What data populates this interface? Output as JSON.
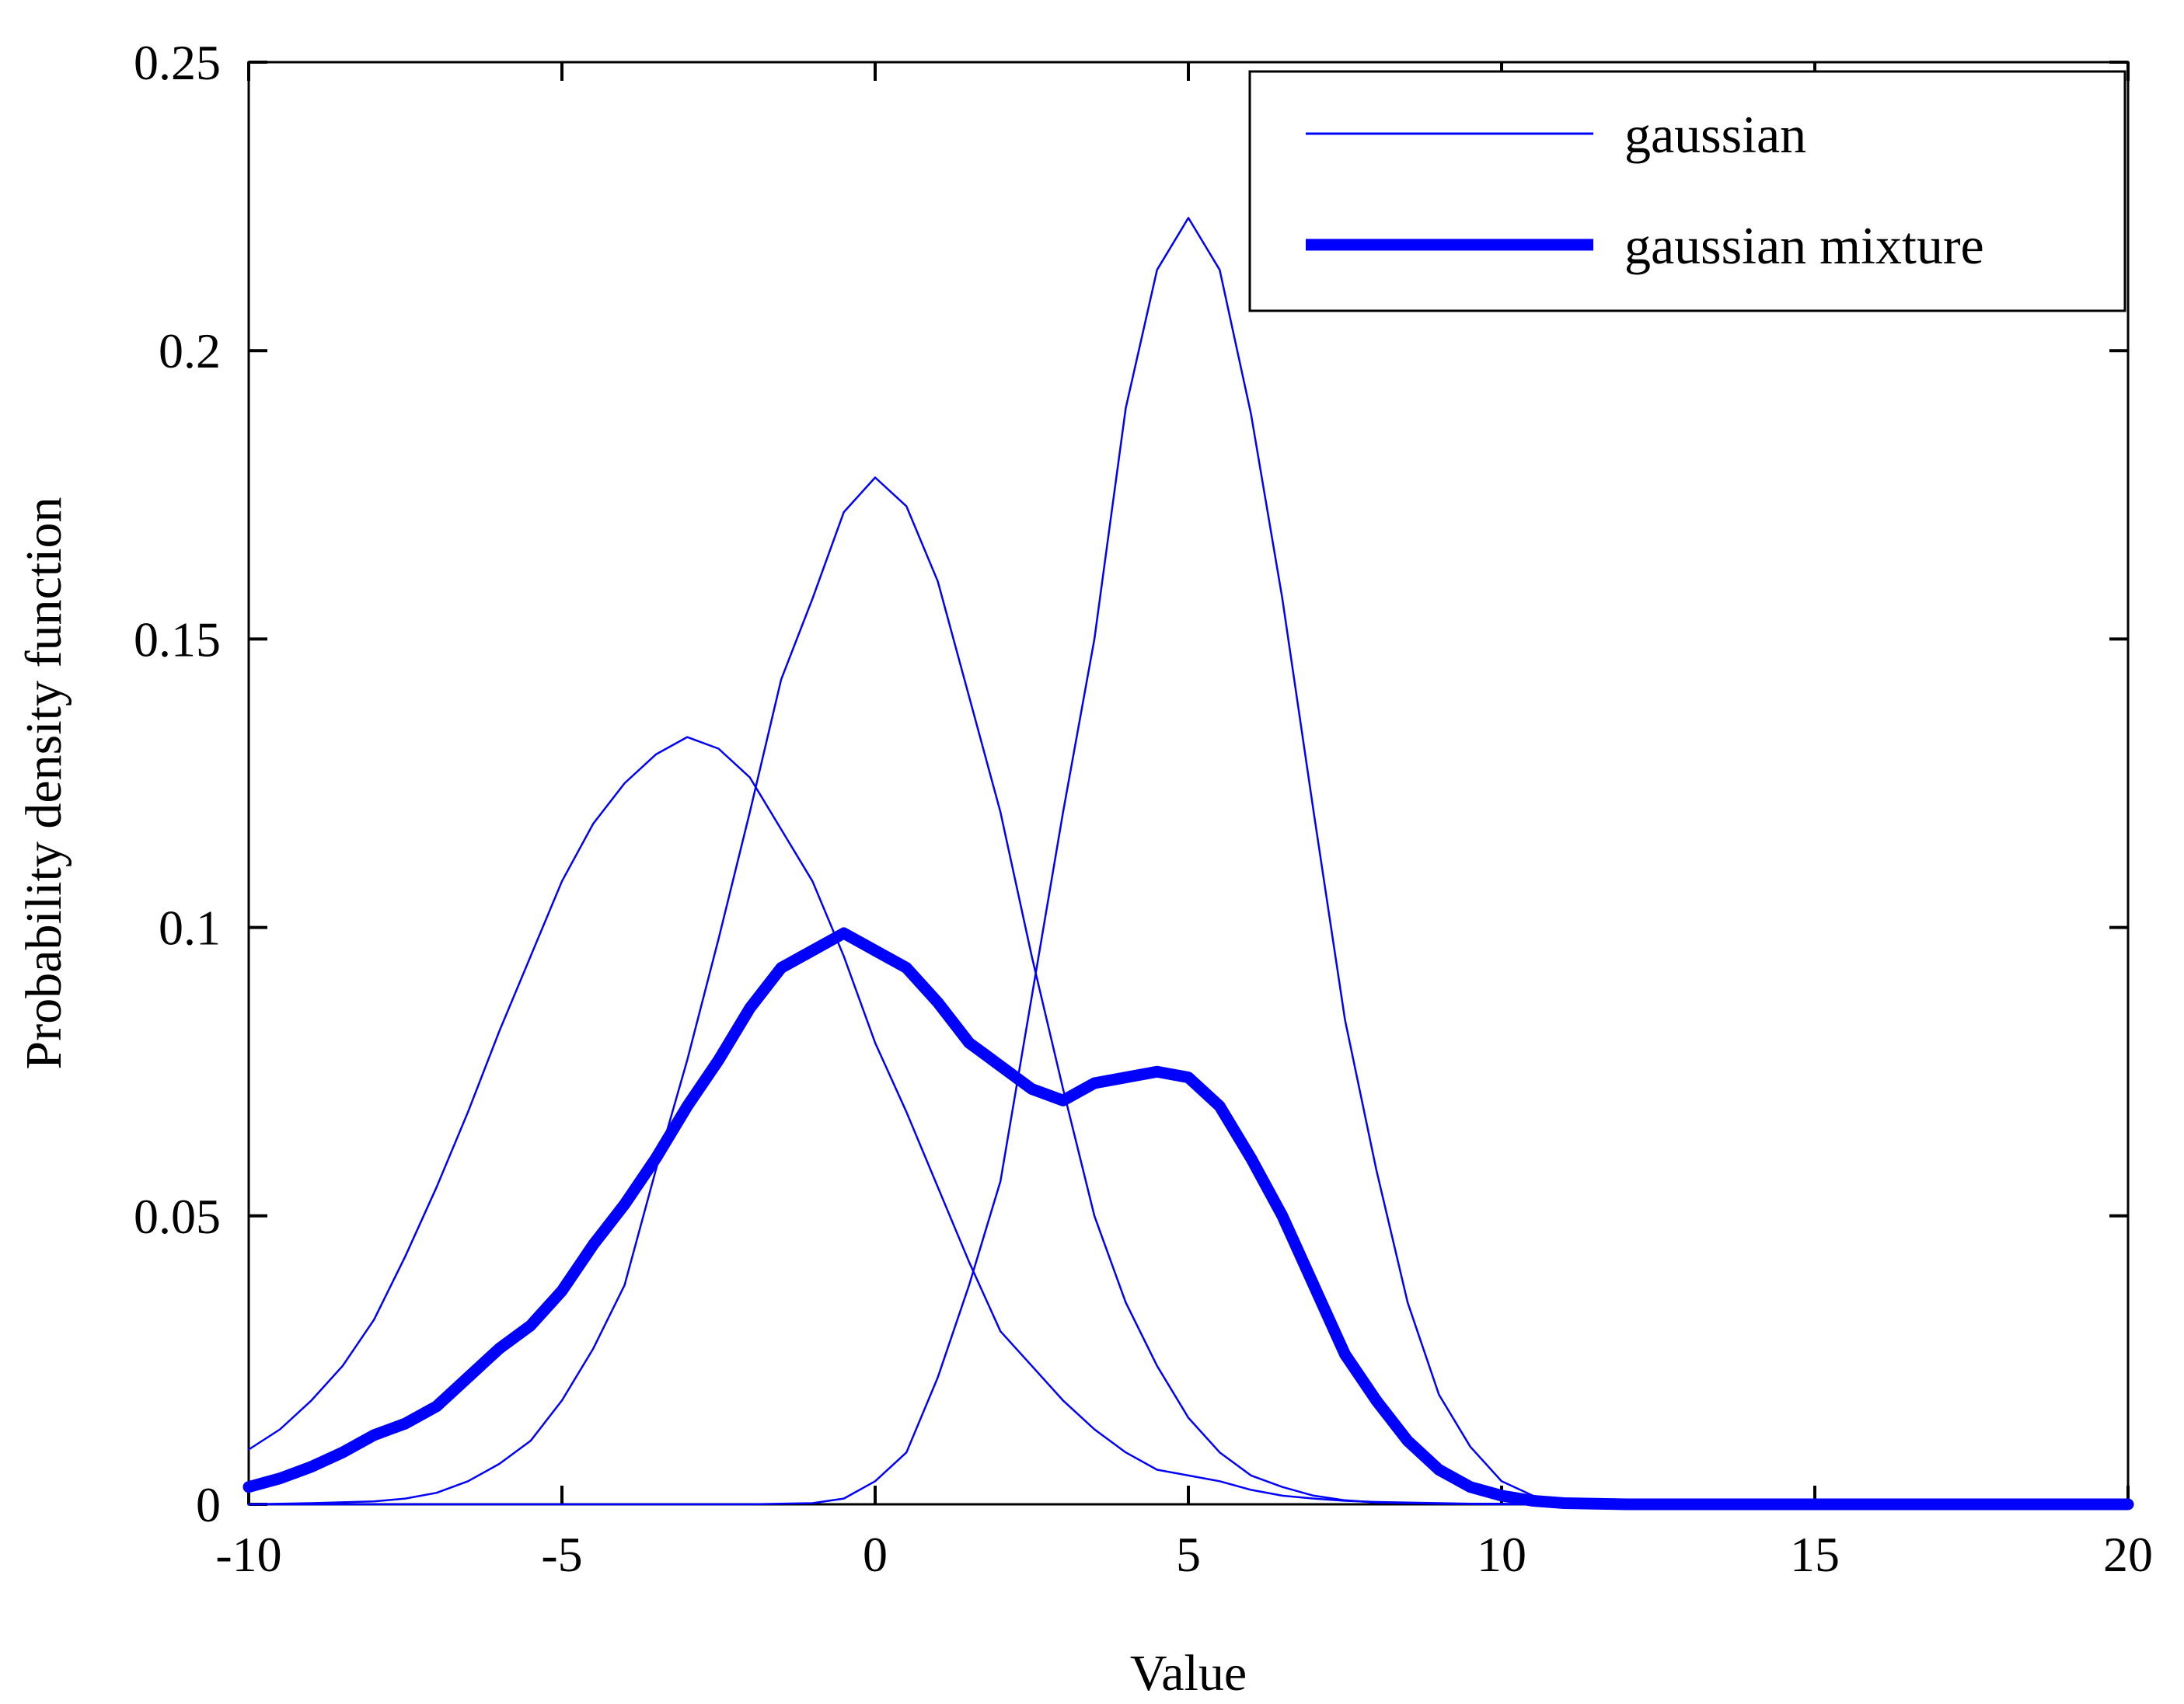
{
  "chart_data": {
    "type": "line",
    "xlabel": "Value",
    "ylabel": "Probability density function",
    "xlim": [
      -10,
      20
    ],
    "ylim": [
      0,
      0.25
    ],
    "xticks": [
      -10,
      -5,
      0,
      5,
      10,
      15,
      20
    ],
    "xtick_labels": [
      "-10",
      "-5",
      "0",
      "5",
      "10",
      "15",
      "20"
    ],
    "yticks": [
      0,
      0.05,
      0.1,
      0.15,
      0.2,
      0.25
    ],
    "ytick_labels": [
      "0",
      "0.05",
      "0.1",
      "0.15",
      "0.2",
      "0.25"
    ],
    "grid": false,
    "legend": {
      "placement": "top-right",
      "entries": [
        {
          "label": "gaussian",
          "style": "thin"
        },
        {
          "label": "gaussian mixture",
          "style": "thick"
        }
      ]
    },
    "colors": {
      "line": "#0000ff",
      "axis": "#000000"
    },
    "series": [
      {
        "legend": "gaussian",
        "style": "thin",
        "x": [
          -10,
          -9.5,
          -9,
          -8.5,
          -8,
          -7.5,
          -7,
          -6.5,
          -6,
          -5.5,
          -5,
          -4.5,
          -4,
          -3.5,
          -3,
          -2.5,
          -2,
          -1.5,
          -1,
          -0.5,
          0,
          0.5,
          1,
          1.5,
          2,
          2.5,
          3,
          3.5,
          4,
          4.5,
          5,
          5.5,
          6,
          6.5,
          7,
          7.5,
          8,
          8.5,
          9,
          9.5,
          10,
          10.5,
          11,
          12,
          14,
          16,
          18,
          20
        ],
        "y": [
          0.0095,
          0.013,
          0.018,
          0.024,
          0.032,
          0.043,
          0.055,
          0.068,
          0.082,
          0.095,
          0.108,
          0.118,
          0.125,
          0.13,
          0.133,
          0.131,
          0.126,
          0.117,
          0.108,
          0.095,
          0.08,
          0.068,
          0.055,
          0.042,
          0.03,
          0.024,
          0.018,
          0.013,
          0.009,
          0.006,
          0.005,
          0.004,
          0.0025,
          0.0015,
          0.001,
          0.0006,
          0.0004,
          0.0003,
          0.0002,
          0.0001,
          0.0001,
          0,
          0,
          0,
          0,
          0,
          0,
          0
        ]
      },
      {
        "legend": "gaussian",
        "style": "thin",
        "x": [
          -10,
          -9,
          -8,
          -7.5,
          -7,
          -6.5,
          -6,
          -5.5,
          -5,
          -4.5,
          -4,
          -3.5,
          -3,
          -2.5,
          -2,
          -1.5,
          -1,
          -0.5,
          0,
          0.5,
          1,
          1.5,
          2,
          2.5,
          3,
          3.5,
          4,
          4.5,
          5,
          5.5,
          6,
          6.5,
          7,
          7.5,
          8,
          9,
          10,
          12,
          14,
          16,
          18,
          20
        ],
        "y": [
          0,
          0.0002,
          0.0005,
          0.001,
          0.002,
          0.004,
          0.007,
          0.011,
          0.018,
          0.027,
          0.038,
          0.058,
          0.077,
          0.098,
          0.12,
          0.143,
          0.157,
          0.172,
          0.178,
          0.173,
          0.16,
          0.14,
          0.12,
          0.095,
          0.072,
          0.05,
          0.035,
          0.024,
          0.015,
          0.009,
          0.005,
          0.003,
          0.0015,
          0.0007,
          0.0003,
          0.0001,
          0,
          0,
          0,
          0,
          0,
          0
        ]
      },
      {
        "legend": "gaussian",
        "style": "thin",
        "x": [
          -10,
          -5,
          -2,
          -1,
          -0.5,
          0,
          0.5,
          1,
          1.5,
          2,
          2.5,
          3,
          3.5,
          4,
          4.5,
          5,
          5.5,
          6,
          6.5,
          7,
          7.5,
          8,
          8.5,
          9,
          9.5,
          10,
          10.5,
          11,
          12,
          14,
          16,
          18,
          20
        ],
        "y": [
          0,
          0,
          0,
          0.0002,
          0.001,
          0.004,
          0.009,
          0.022,
          0.038,
          0.056,
          0.088,
          0.12,
          0.15,
          0.19,
          0.214,
          0.223,
          0.214,
          0.189,
          0.157,
          0.12,
          0.084,
          0.058,
          0.035,
          0.019,
          0.01,
          0.004,
          0.0015,
          0.0005,
          0.0001,
          0,
          0,
          0,
          0
        ]
      },
      {
        "legend": "gaussian mixture",
        "style": "thick",
        "x": [
          -10,
          -9.5,
          -9,
          -8.5,
          -8,
          -7.5,
          -7,
          -6.5,
          -6,
          -5.5,
          -5,
          -4.5,
          -4,
          -3.5,
          -3,
          -2.5,
          -2,
          -1.5,
          -1,
          -0.5,
          0,
          0.5,
          1,
          1.5,
          2,
          2.5,
          3,
          3.5,
          4,
          4.5,
          5,
          5.5,
          6,
          6.5,
          7,
          7.5,
          8,
          8.5,
          9,
          9.5,
          10,
          10.5,
          11,
          12,
          14,
          16,
          18,
          20
        ],
        "y": [
          0.003,
          0.0045,
          0.0065,
          0.009,
          0.012,
          0.014,
          0.017,
          0.022,
          0.027,
          0.031,
          0.037,
          0.045,
          0.052,
          0.06,
          0.069,
          0.077,
          0.086,
          0.093,
          0.096,
          0.099,
          0.096,
          0.093,
          0.087,
          0.08,
          0.076,
          0.072,
          0.07,
          0.073,
          0.074,
          0.075,
          0.074,
          0.069,
          0.06,
          0.05,
          0.038,
          0.026,
          0.018,
          0.011,
          0.006,
          0.003,
          0.0015,
          0.0006,
          0.0002,
          0,
          0,
          0,
          0,
          0
        ]
      }
    ]
  }
}
